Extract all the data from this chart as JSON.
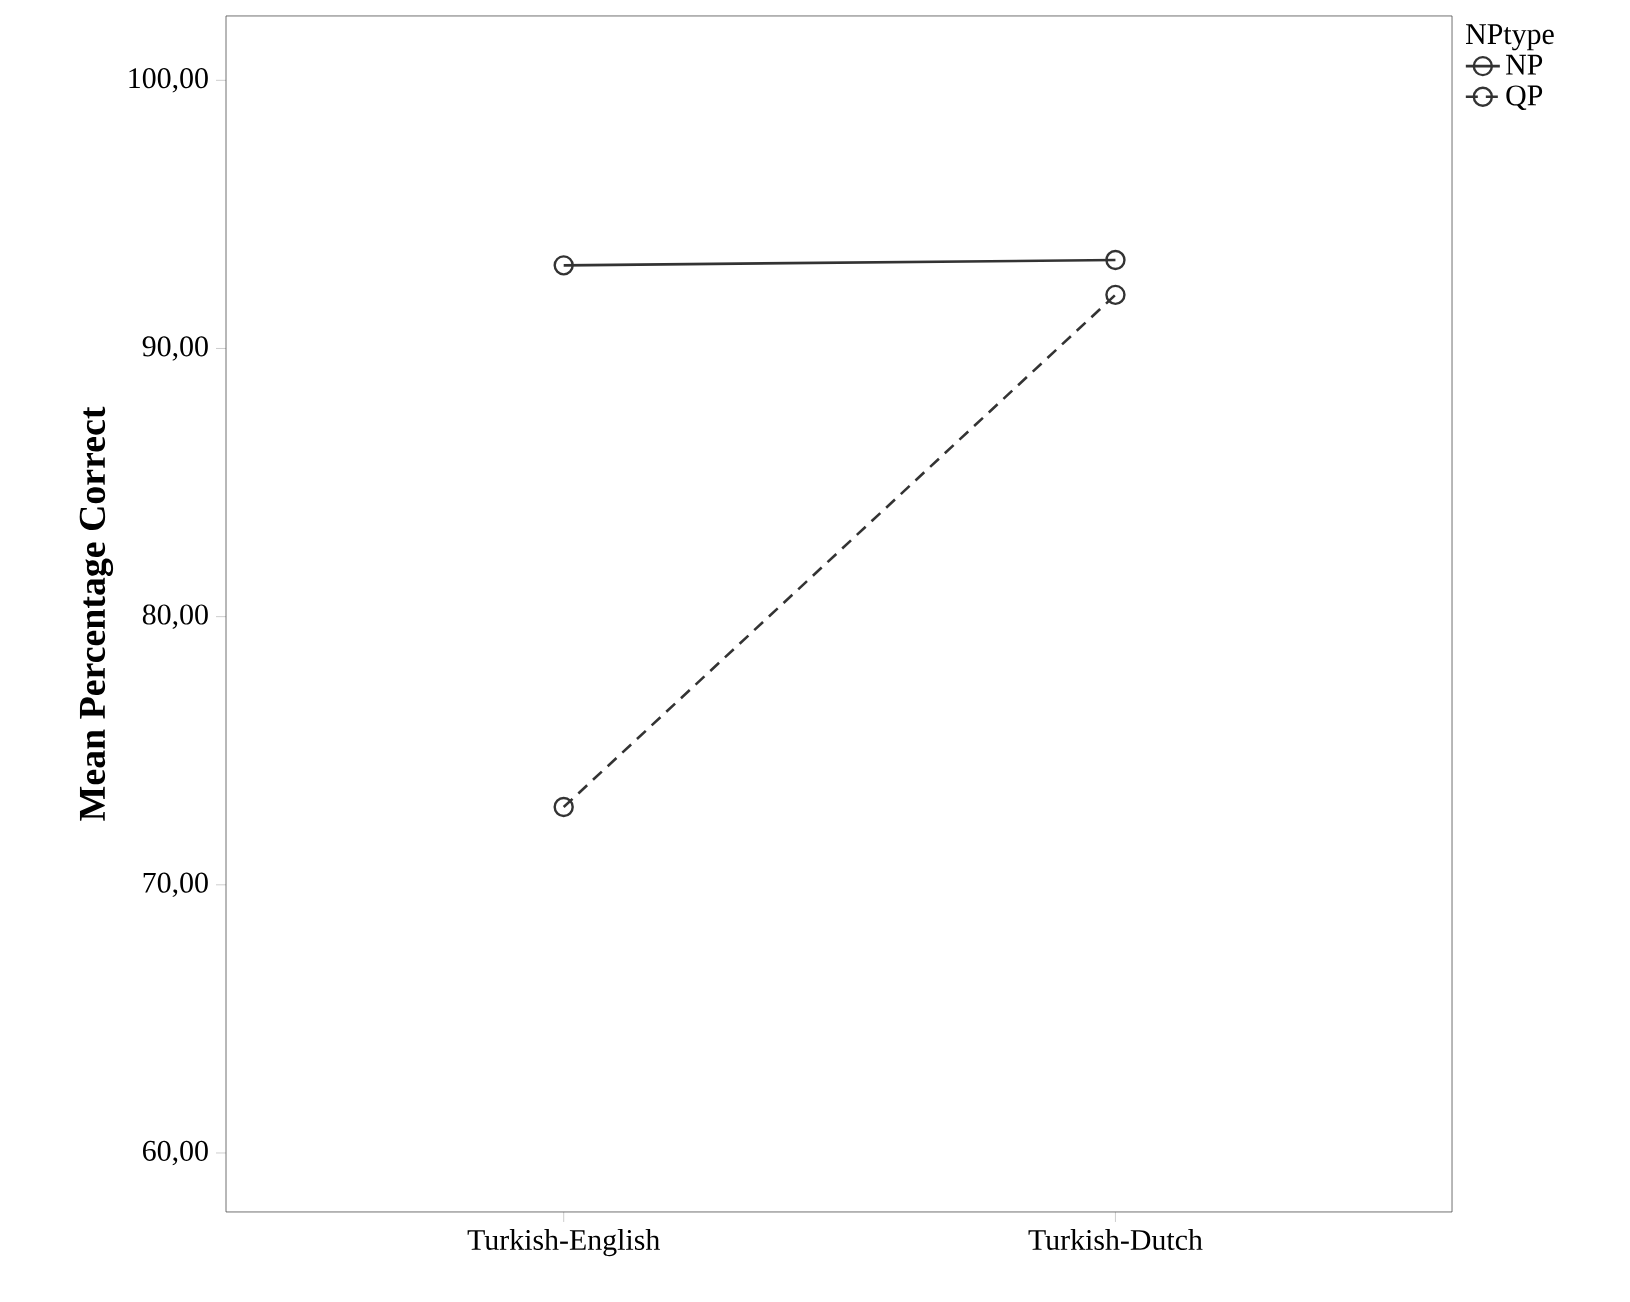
{
  "chart_data": {
    "type": "line",
    "ylabel": "Mean Percentage Correct",
    "legend_title": "NPtype",
    "categories": [
      "Turkish-English",
      "Turkish-Dutch"
    ],
    "series": [
      {
        "name": "NP",
        "color": "#333333",
        "values": [
          93.1,
          93.3
        ],
        "line_style": "solid"
      },
      {
        "name": "QP",
        "color": "#333333",
        "values": [
          72.9,
          92.0
        ],
        "line_style": "dashed"
      }
    ],
    "ylim": [
      57.8,
      102.4
    ],
    "yticks": [
      {
        "value": 60,
        "label": "60,00"
      },
      {
        "value": 70,
        "label": "70,00"
      },
      {
        "value": 80,
        "label": "80,00"
      },
      {
        "value": 90,
        "label": "90,00"
      },
      {
        "value": 100,
        "label": "100,00"
      }
    ],
    "marker": "circle",
    "legend": "top right",
    "grid": false
  }
}
